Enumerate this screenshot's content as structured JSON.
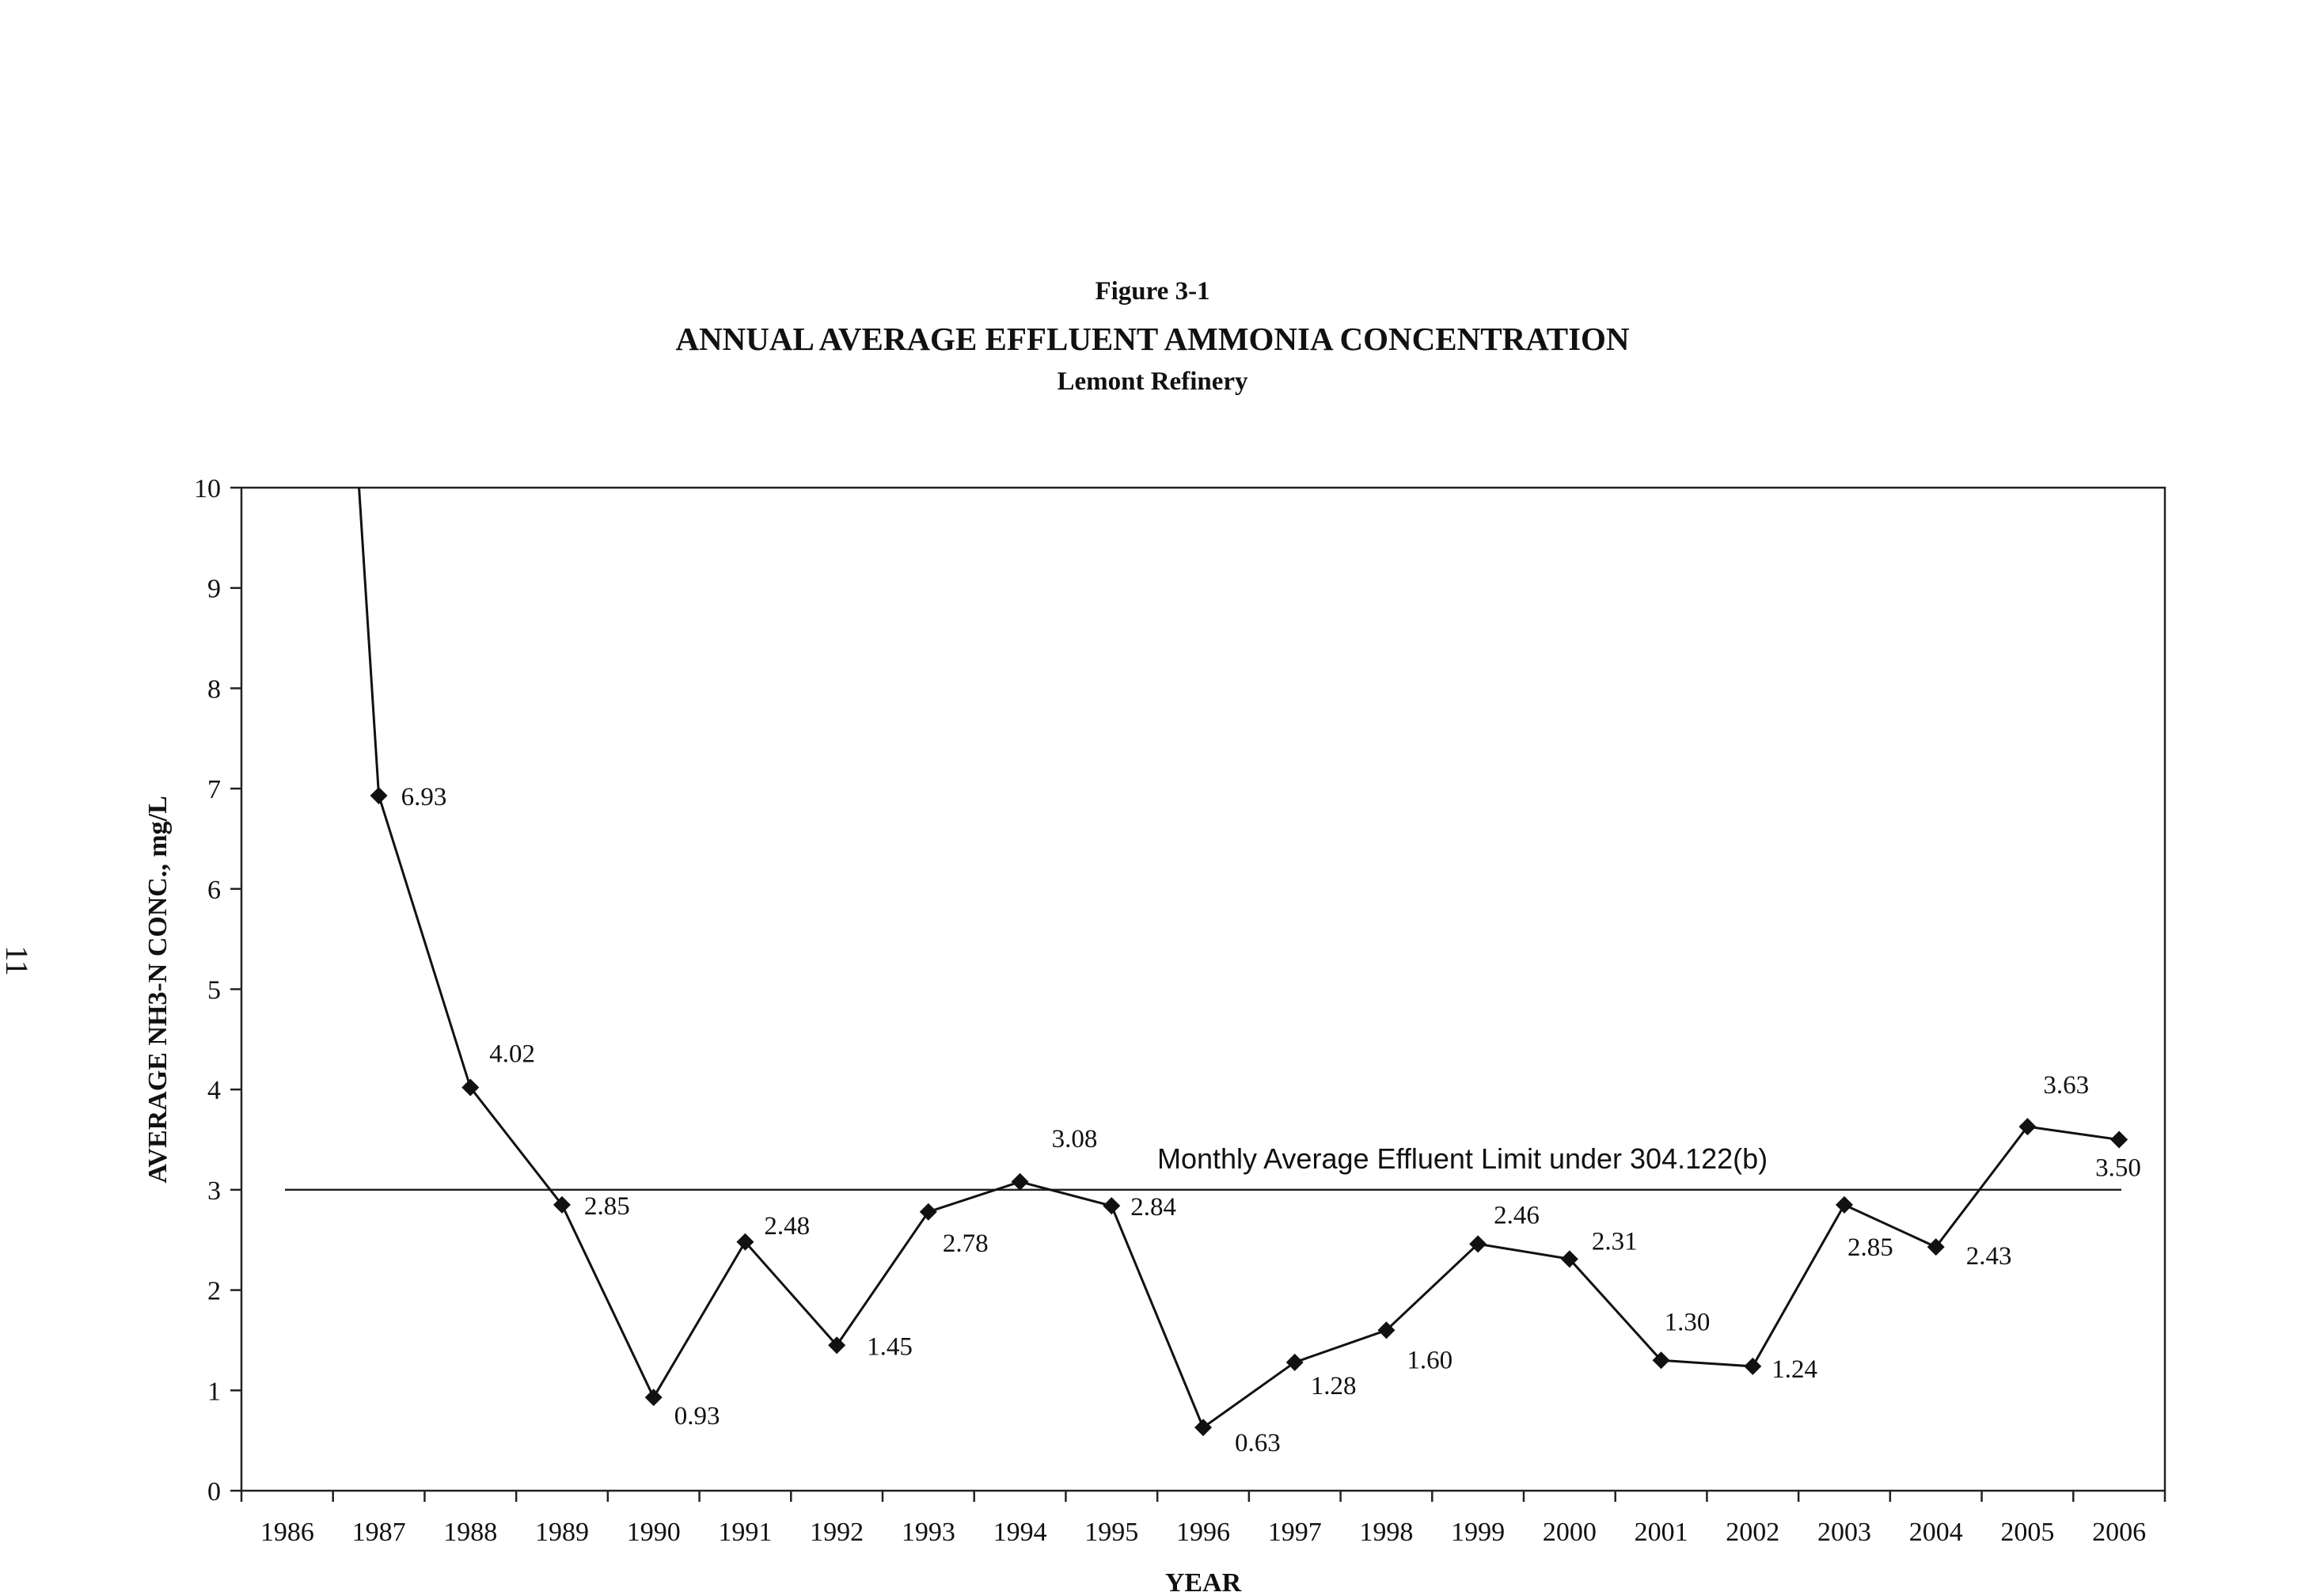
{
  "page_number": "11",
  "chart_data": {
    "type": "line",
    "figure_label": "Figure 3-1",
    "title": "ANNUAL AVERAGE EFFLUENT AMMONIA CONCENTRATION",
    "subtitle": "Lemont Refinery",
    "xlabel": "YEAR",
    "ylabel": "AVERAGE NH3-N CONC., mg/L",
    "ylim": [
      0,
      10
    ],
    "yticks": [
      "0",
      "1",
      "2",
      "3",
      "4",
      "5",
      "6",
      "7",
      "8",
      "9",
      "10"
    ],
    "categories": [
      "1986",
      "1987",
      "1988",
      "1989",
      "1990",
      "1991",
      "1992",
      "1993",
      "1994",
      "1995",
      "1996",
      "1997",
      "1998",
      "1999",
      "2000",
      "2001",
      "2002",
      "2003",
      "2004",
      "2005",
      "2006"
    ],
    "grid": false,
    "legend": "none",
    "line_color": "#111111",
    "series": [
      {
        "values": [
          null,
          6.93,
          4.02,
          2.85,
          0.93,
          2.48,
          1.45,
          2.78,
          3.08,
          2.84,
          0.63,
          1.28,
          1.6,
          2.46,
          2.31,
          1.3,
          1.24,
          2.85,
          2.43,
          3.63,
          3.5
        ],
        "labels": [
          "",
          "6.93",
          "4.02",
          "2.85",
          "0.93",
          "2.48",
          "1.45",
          "2.78",
          "3.08",
          "2.84",
          "0.63",
          "1.28",
          "1.60",
          "2.46",
          "2.31",
          "1.30",
          "1.24",
          "2.85",
          "2.43",
          "3.63",
          "3.50"
        ]
      }
    ],
    "reference_line": {
      "value": 3,
      "label": "Monthly Average Effluent Limit under 304.122(b)"
    }
  }
}
